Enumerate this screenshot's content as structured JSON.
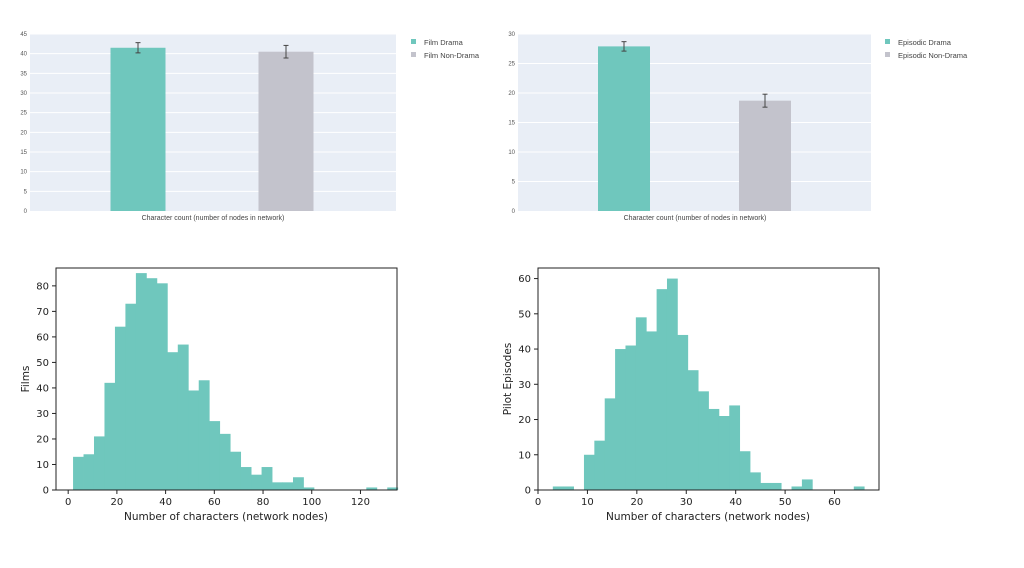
{
  "chart_data": [
    {
      "type": "bar",
      "xlabel": "Character count (number of nodes in network)",
      "ylim": [
        0,
        45
      ],
      "yticks": [
        0,
        5,
        10,
        15,
        20,
        25,
        30,
        35,
        40,
        45
      ],
      "grid": true,
      "legend_position": "top-right",
      "series": [
        {
          "name": "Film Drama",
          "value": 41.5,
          "error": 1.3,
          "color": "#6fc7bd"
        },
        {
          "name": "Film Non-Drama",
          "value": 40.5,
          "error": 1.6,
          "color": "#c3c3cc"
        }
      ],
      "background": "#e9eef6"
    },
    {
      "type": "bar",
      "xlabel": "Character count (number of nodes in network)",
      "ylim": [
        0,
        30
      ],
      "yticks": [
        0,
        5,
        10,
        15,
        20,
        25,
        30
      ],
      "grid": true,
      "legend_position": "top-right",
      "series": [
        {
          "name": "Episodic Drama",
          "value": 27.9,
          "error": 0.8,
          "color": "#6fc7bd"
        },
        {
          "name": "Episodic Non-Drama",
          "value": 18.7,
          "error": 1.1,
          "color": "#c3c3cc"
        }
      ],
      "background": "#e9eef6"
    },
    {
      "type": "bar",
      "subtype": "histogram",
      "xlabel": "Number of characters (network nodes)",
      "ylabel": "Films",
      "xlim": [
        -5,
        135
      ],
      "ylim": [
        0,
        87
      ],
      "xticks": [
        0,
        20,
        40,
        60,
        80,
        100,
        120
      ],
      "yticks": [
        0,
        10,
        20,
        30,
        40,
        50,
        60,
        70,
        80
      ],
      "bin_start": 2,
      "bin_width": 4.3,
      "counts": [
        13,
        14,
        21,
        42,
        64,
        73,
        85,
        83,
        81,
        54,
        57,
        39,
        43,
        27,
        22,
        15,
        9,
        6,
        9,
        3,
        3,
        5,
        1,
        0,
        0,
        0,
        0,
        0,
        1,
        0,
        1
      ],
      "color": "#6fc7bd"
    },
    {
      "type": "bar",
      "subtype": "histogram",
      "xlabel": "Number of characters (network nodes)",
      "ylabel": "Pilot Episodes",
      "xlim": [
        0,
        69
      ],
      "ylim": [
        0,
        63
      ],
      "xticks": [
        0,
        10,
        20,
        30,
        40,
        50,
        60
      ],
      "yticks": [
        0,
        10,
        20,
        30,
        40,
        50,
        60
      ],
      "bin_start": 3,
      "bin_width": 2.1,
      "counts": [
        1,
        1,
        0,
        10,
        14,
        26,
        40,
        41,
        49,
        45,
        57,
        60,
        44,
        34,
        28,
        23,
        21,
        24,
        11,
        5,
        2,
        2,
        0,
        1,
        3,
        0,
        0,
        0,
        0,
        1
      ],
      "color": "#6fc7bd"
    }
  ]
}
